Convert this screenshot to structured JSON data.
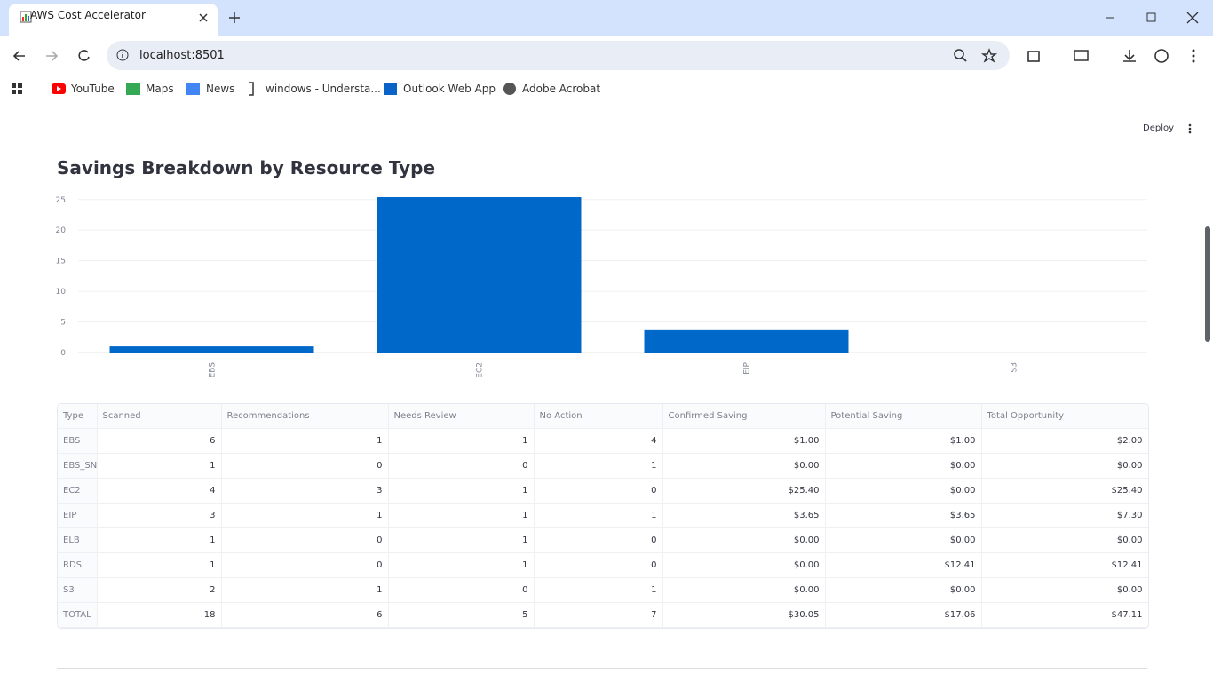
{
  "browser": {
    "tab_title": "AWS Cost Accelerator",
    "url": "localhost:8501",
    "bookmarks": [
      "YouTube",
      "Maps",
      "News",
      "windows - Understa...",
      "Outlook Web App",
      "Adobe Acrobat"
    ]
  },
  "page": {
    "deploy": "Deploy"
  },
  "chart_data": {
    "type": "bar",
    "title": "Savings Breakdown by Resource Type",
    "categories": [
      "EBS",
      "EC2",
      "EIP",
      "S3"
    ],
    "values": [
      1,
      25.4,
      3.65,
      0
    ],
    "color": "#0068c9",
    "ylim": [
      0,
      25.4
    ],
    "yticks": [
      0,
      5,
      10,
      15,
      20,
      25
    ],
    "grid": true
  },
  "table": {
    "header": [
      "Type",
      "Scanned",
      "Recommendations",
      "Needs Review",
      "No Action",
      "Confirmed Saving",
      "Potential Saving",
      "Total Opportunity"
    ],
    "rows": [
      [
        "EBS",
        "6",
        "1",
        "1",
        "4",
        "$1.00",
        "$1.00",
        "$2.00"
      ],
      [
        "EBS_SN",
        "1",
        "0",
        "0",
        "1",
        "$0.00",
        "$0.00",
        "$0.00"
      ],
      [
        "EC2",
        "4",
        "3",
        "1",
        "0",
        "$25.40",
        "$0.00",
        "$25.40"
      ],
      [
        "EIP",
        "3",
        "1",
        "1",
        "1",
        "$3.65",
        "$3.65",
        "$7.30"
      ],
      [
        "ELB",
        "1",
        "0",
        "1",
        "0",
        "$0.00",
        "$0.00",
        "$0.00"
      ],
      [
        "RDS",
        "1",
        "0",
        "1",
        "0",
        "$0.00",
        "$12.41",
        "$12.41"
      ],
      [
        "S3",
        "2",
        "1",
        "0",
        "1",
        "$0.00",
        "$0.00",
        "$0.00"
      ],
      [
        "TOTAL",
        "18",
        "6",
        "5",
        "7",
        "$30.05",
        "$17.06",
        "$47.11"
      ]
    ]
  }
}
